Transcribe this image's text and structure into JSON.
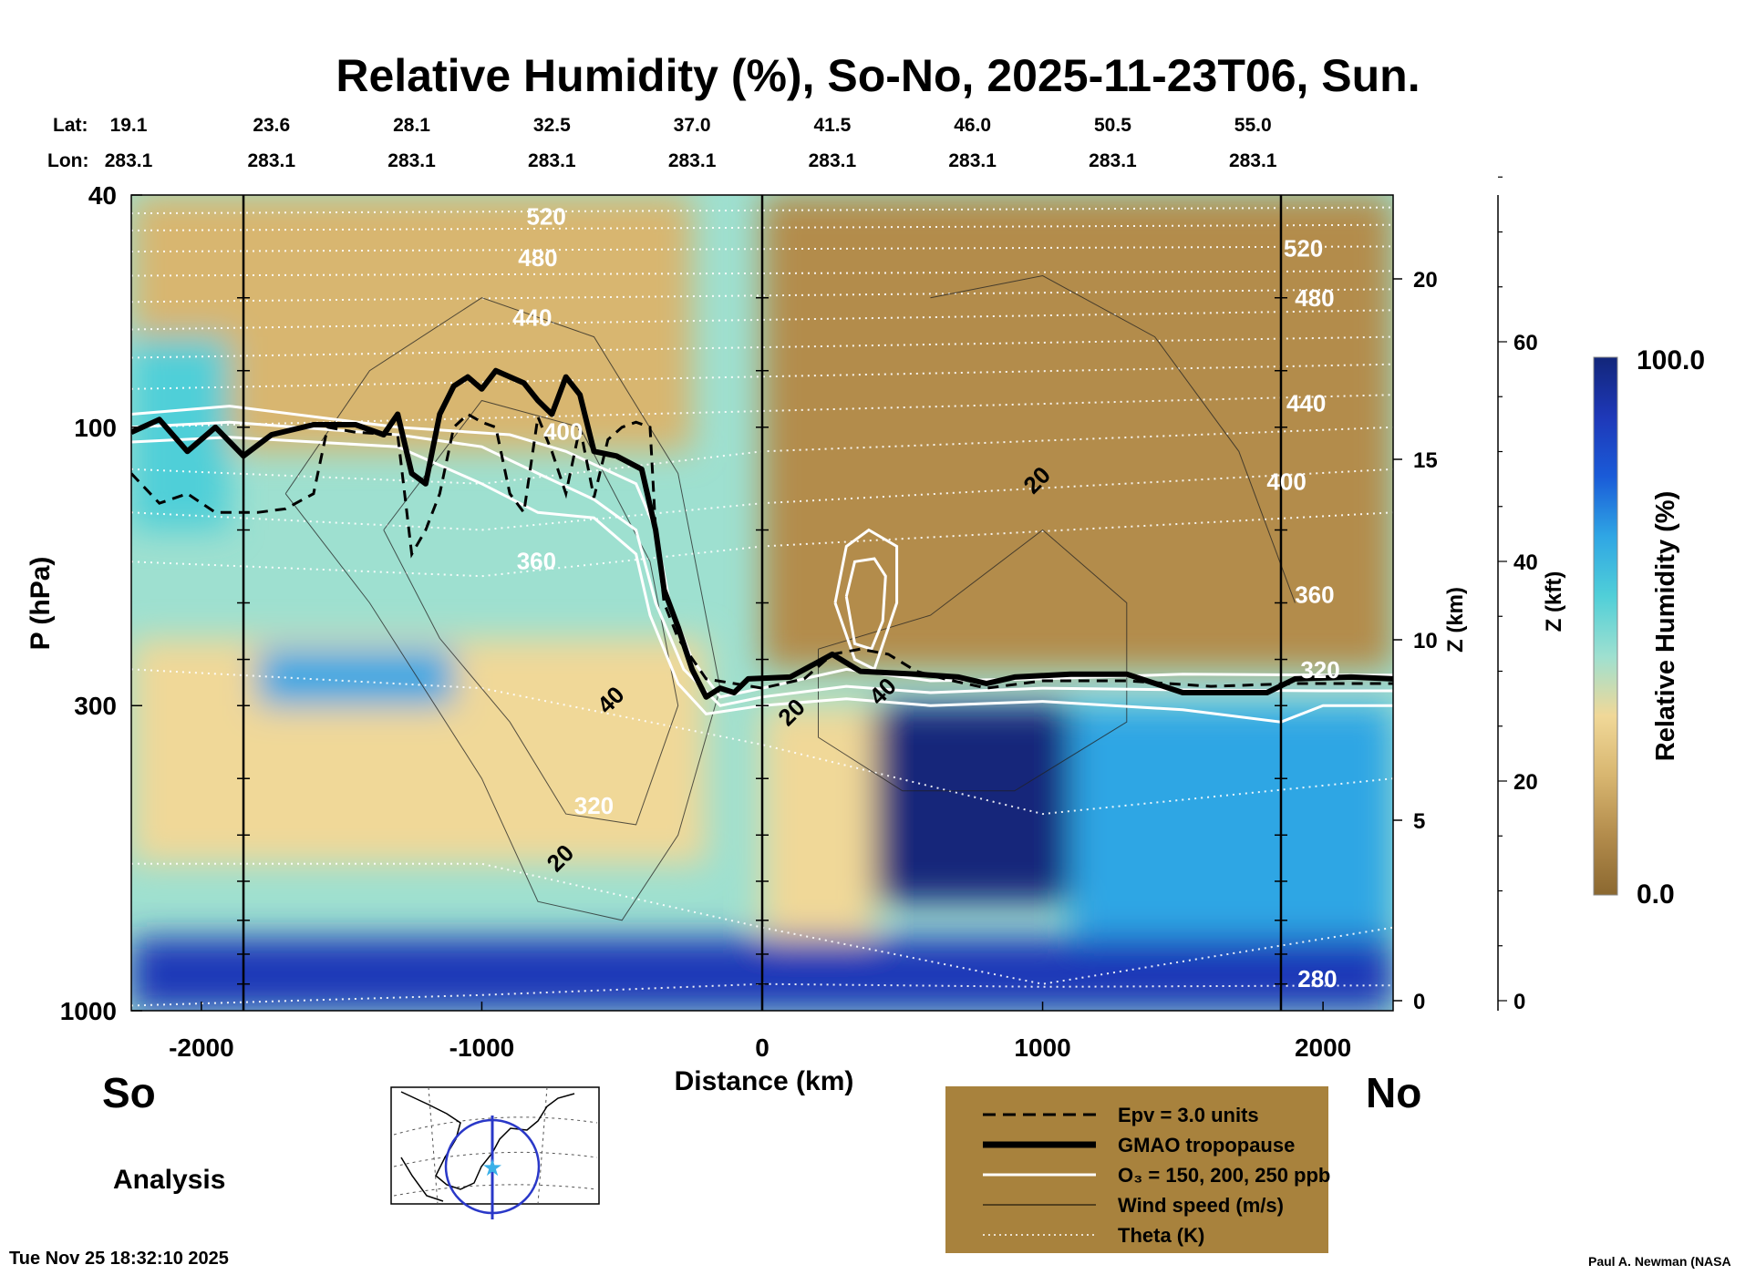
{
  "chart_data": {
    "type": "heatmap",
    "title": "Relative Humidity (%), So-No, 2025-11-23T06, Sun.",
    "variable": "Relative Humidity",
    "xlabel": "Distance (km)",
    "ylabel": "P (hPa)",
    "xlim": [
      -2250,
      2250
    ],
    "ylim": [
      1000,
      40
    ],
    "y_scale": "log",
    "x_ticks": [
      -2000,
      -1000,
      0,
      1000,
      2000
    ],
    "x_tick_labels": [
      "-2000",
      "-1000",
      "0",
      "1000",
      "2000"
    ],
    "y_ticks": [
      40,
      100,
      300,
      1000
    ],
    "y_tick_labels": [
      "40",
      "100",
      "300",
      "1000"
    ],
    "z_km_label": "Z (km)",
    "z_km_ticks": [
      0,
      5,
      10,
      15,
      20
    ],
    "z_km_tick_labels": [
      "0",
      "5",
      "10",
      "15",
      "20"
    ],
    "z_kft_label": "Z (kft)",
    "z_kft_ticks": [
      0,
      20,
      40,
      60
    ],
    "z_kft_tick_labels": [
      "0",
      "20",
      "40",
      "60"
    ],
    "lat_label": "Lat:",
    "lon_label": "Lon:",
    "latlon_stations": [
      {
        "x": -2250,
        "lat": "19.1",
        "lon": "283.1"
      },
      {
        "x": -1750,
        "lat": "23.6",
        "lon": "283.1"
      },
      {
        "x": -1250,
        "lat": "28.1",
        "lon": "283.1"
      },
      {
        "x": -750,
        "lat": "32.5",
        "lon": "283.1"
      },
      {
        "x": -250,
        "lat": "37.0",
        "lon": "283.1"
      },
      {
        "x": 250,
        "lat": "41.5",
        "lon": "283.1"
      },
      {
        "x": 750,
        "lat": "46.0",
        "lon": "283.1"
      },
      {
        "x": 1250,
        "lat": "50.5",
        "lon": "283.1"
      },
      {
        "x": 1750,
        "lat": "55.0",
        "lon": "283.1"
      }
    ],
    "vertical_lines_km": [
      -1850,
      0,
      1850
    ],
    "colorbar": {
      "label": "Relative Humidity (%)",
      "min_label": "0.0",
      "max_label": "100.0",
      "min": 0,
      "max": 100,
      "stops": [
        "#8b6830",
        "#b38c4c",
        "#d8b670",
        "#f0d898",
        "#9ee0d0",
        "#50cfd8",
        "#2fa6e4",
        "#1a5bd8",
        "#1e38b8",
        "#12267a"
      ]
    },
    "rh_regions": [
      {
        "name": "stratosphere-north",
        "x_range": [
          0,
          2250
        ],
        "p_range": [
          40,
          260
        ],
        "rh": 8
      },
      {
        "name": "stratosphere-south",
        "x_range": [
          -2250,
          -250
        ],
        "p_range": [
          40,
          110
        ],
        "rh": 20
      },
      {
        "name": "upper-trop-south-moist",
        "x_range": [
          -2250,
          -1900
        ],
        "p_range": [
          70,
          150
        ],
        "rh": 60
      },
      {
        "name": "mid-trop-south",
        "x_range": [
          -2250,
          -200
        ],
        "p_range": [
          230,
          560
        ],
        "rh": 30
      },
      {
        "name": "trough-moist-band",
        "x_range": [
          -1800,
          -1100
        ],
        "p_range": [
          240,
          300
        ],
        "rh": 65
      },
      {
        "name": "north-trop-dry-tongue",
        "x_range": [
          0,
          400
        ],
        "p_range": [
          300,
          750
        ],
        "rh": 30
      },
      {
        "name": "north-trop-saturated",
        "x_range": [
          400,
          1100
        ],
        "p_range": [
          300,
          650
        ],
        "rh": 95
      },
      {
        "name": "north-trop-moist",
        "x_range": [
          1100,
          2250
        ],
        "p_range": [
          300,
          800
        ],
        "rh": 65
      },
      {
        "name": "boundary-layer",
        "x_range": [
          -2250,
          2250
        ],
        "p_range": [
          750,
          1000
        ],
        "rh": 88
      }
    ],
    "tropopause_hpa": [
      [
        -2250,
        102
      ],
      [
        -2150,
        97
      ],
      [
        -2050,
        110
      ],
      [
        -1950,
        100
      ],
      [
        -1850,
        112
      ],
      [
        -1750,
        103
      ],
      [
        -1600,
        99
      ],
      [
        -1450,
        99
      ],
      [
        -1350,
        103
      ],
      [
        -1300,
        95
      ],
      [
        -1250,
        120
      ],
      [
        -1200,
        125
      ],
      [
        -1150,
        95
      ],
      [
        -1100,
        85
      ],
      [
        -1050,
        82
      ],
      [
        -1000,
        86
      ],
      [
        -950,
        80
      ],
      [
        -850,
        84
      ],
      [
        -800,
        90
      ],
      [
        -750,
        95
      ],
      [
        -700,
        82
      ],
      [
        -650,
        88
      ],
      [
        -600,
        110
      ],
      [
        -520,
        112
      ],
      [
        -430,
        118
      ],
      [
        -380,
        150
      ],
      [
        -350,
        190
      ],
      [
        -300,
        220
      ],
      [
        -250,
        260
      ],
      [
        -200,
        290
      ],
      [
        -150,
        280
      ],
      [
        -100,
        285
      ],
      [
        -50,
        270
      ],
      [
        100,
        268
      ],
      [
        250,
        245
      ],
      [
        350,
        262
      ],
      [
        550,
        265
      ],
      [
        700,
        268
      ],
      [
        800,
        275
      ],
      [
        900,
        268
      ],
      [
        1100,
        265
      ],
      [
        1300,
        265
      ],
      [
        1500,
        285
      ],
      [
        1800,
        285
      ],
      [
        1900,
        270
      ],
      [
        2100,
        268
      ],
      [
        2250,
        270
      ]
    ],
    "epv_3_units_hpa": [
      [
        -2250,
        120
      ],
      [
        -2150,
        135
      ],
      [
        -2050,
        130
      ],
      [
        -1950,
        140
      ],
      [
        -1800,
        140
      ],
      [
        -1700,
        138
      ],
      [
        -1600,
        130
      ],
      [
        -1550,
        100
      ],
      [
        -1450,
        102
      ],
      [
        -1300,
        103
      ],
      [
        -1250,
        165
      ],
      [
        -1200,
        150
      ],
      [
        -1150,
        130
      ],
      [
        -1100,
        100
      ],
      [
        -1050,
        95
      ],
      [
        -1000,
        98
      ],
      [
        -950,
        100
      ],
      [
        -900,
        130
      ],
      [
        -850,
        140
      ],
      [
        -800,
        96
      ],
      [
        -750,
        110
      ],
      [
        -700,
        130
      ],
      [
        -650,
        100
      ],
      [
        -600,
        132
      ],
      [
        -550,
        105
      ],
      [
        -500,
        100
      ],
      [
        -450,
        98
      ],
      [
        -400,
        100
      ],
      [
        -380,
        150
      ],
      [
        -350,
        200
      ],
      [
        -300,
        230
      ],
      [
        -200,
        270
      ],
      [
        -100,
        275
      ],
      [
        0,
        280
      ],
      [
        150,
        270
      ],
      [
        250,
        245
      ],
      [
        350,
        240
      ],
      [
        450,
        245
      ],
      [
        550,
        262
      ],
      [
        650,
        270
      ],
      [
        800,
        280
      ],
      [
        1000,
        272
      ],
      [
        1300,
        272
      ],
      [
        1600,
        278
      ],
      [
        1900,
        275
      ],
      [
        2250,
        275
      ]
    ],
    "ozone_contours_ppb": [
      150,
      200,
      250
    ],
    "ozone_lines_hpa": [
      [
        [
          -2250,
          95
        ],
        [
          -1900,
          92
        ],
        [
          -1300,
          100
        ],
        [
          -900,
          103
        ],
        [
          -700,
          110
        ],
        [
          -450,
          125
        ],
        [
          -380,
          150
        ],
        [
          -330,
          200
        ],
        [
          -250,
          250
        ],
        [
          -150,
          290
        ],
        [
          0,
          280
        ],
        [
          300,
          260
        ],
        [
          600,
          272
        ],
        [
          1000,
          270
        ],
        [
          1500,
          265
        ],
        [
          2000,
          266
        ],
        [
          2250,
          266
        ]
      ],
      [
        [
          -2250,
          100
        ],
        [
          -1900,
          98
        ],
        [
          -1300,
          103
        ],
        [
          -1000,
          108
        ],
        [
          -800,
          120
        ],
        [
          -600,
          133
        ],
        [
          -450,
          150
        ],
        [
          -380,
          200
        ],
        [
          -280,
          260
        ],
        [
          -150,
          300
        ],
        [
          0,
          290
        ],
        [
          300,
          278
        ],
        [
          600,
          285
        ],
        [
          1000,
          280
        ],
        [
          1500,
          282
        ],
        [
          2000,
          283
        ],
        [
          2250,
          283
        ]
      ],
      [
        [
          -2250,
          106
        ],
        [
          -1900,
          104
        ],
        [
          -1300,
          108
        ],
        [
          -1000,
          125
        ],
        [
          -800,
          140
        ],
        [
          -600,
          143
        ],
        [
          -450,
          165
        ],
        [
          -400,
          210
        ],
        [
          -300,
          275
        ],
        [
          -200,
          310
        ],
        [
          0,
          300
        ],
        [
          300,
          292
        ],
        [
          600,
          300
        ],
        [
          1000,
          295
        ],
        [
          1500,
          305
        ],
        [
          1850,
          320
        ],
        [
          2000,
          300
        ],
        [
          2250,
          300
        ]
      ]
    ],
    "wind_speed_contours_ms": [
      20,
      40
    ],
    "wind_labels": [
      {
        "x": 1000,
        "p": 126,
        "text": "20"
      },
      {
        "x": 125,
        "p": 315,
        "text": "20"
      },
      {
        "x": 450,
        "p": 290,
        "text": "40"
      },
      {
        "x": -520,
        "p": 300,
        "text": "40"
      },
      {
        "x": -700,
        "p": 560,
        "text": "20"
      }
    ],
    "theta_levels_k": [
      280,
      320,
      360,
      400,
      440,
      480,
      520
    ],
    "theta_labels": [
      {
        "x": -770,
        "p": 45,
        "text": "520"
      },
      {
        "x": -800,
        "p": 53,
        "text": "480"
      },
      {
        "x": -820,
        "p": 67,
        "text": "440"
      },
      {
        "x": -710,
        "p": 105,
        "text": "400"
      },
      {
        "x": -805,
        "p": 175,
        "text": "360"
      },
      {
        "x": -600,
        "p": 460,
        "text": "320"
      },
      {
        "x": 1930,
        "p": 51,
        "text": "520"
      },
      {
        "x": 1970,
        "p": 62,
        "text": "480"
      },
      {
        "x": 1940,
        "p": 94,
        "text": "440"
      },
      {
        "x": 1870,
        "p": 128,
        "text": "400"
      },
      {
        "x": 1970,
        "p": 200,
        "text": "360"
      },
      {
        "x": 1990,
        "p": 269,
        "text": "320"
      },
      {
        "x": 1980,
        "p": 910,
        "text": "280"
      }
    ],
    "theta_lines_hpa": [
      [
        [
          -2250,
          43
        ],
        [
          2250,
          42
        ]
      ],
      [
        [
          -2250,
          46
        ],
        [
          2250,
          45
        ]
      ],
      [
        [
          -2250,
          50
        ],
        [
          2250,
          49
        ]
      ],
      [
        [
          -2250,
          55
        ],
        [
          2250,
          54
        ]
      ],
      [
        [
          -2250,
          61
        ],
        [
          2250,
          58
        ]
      ],
      [
        [
          -2250,
          68
        ],
        [
          2250,
          63
        ]
      ],
      [
        [
          -2250,
          76
        ],
        [
          2250,
          70
        ]
      ],
      [
        [
          -2250,
          86
        ],
        [
          2250,
          78
        ]
      ],
      [
        [
          -2250,
          100
        ],
        [
          2250,
          88
        ]
      ],
      [
        [
          -2250,
          118
        ],
        [
          -1000,
          125
        ],
        [
          0,
          110
        ],
        [
          2250,
          100
        ]
      ],
      [
        [
          -2250,
          140
        ],
        [
          -1000,
          150
        ],
        [
          0,
          135
        ],
        [
          2250,
          118
        ]
      ],
      [
        [
          -2250,
          170
        ],
        [
          -1000,
          180
        ],
        [
          0,
          160
        ],
        [
          2250,
          140
        ]
      ],
      [
        [
          -2250,
          260
        ],
        [
          -1000,
          280
        ],
        [
          0,
          350
        ],
        [
          1000,
          460
        ],
        [
          2250,
          400
        ]
      ],
      [
        [
          -2250,
          560
        ],
        [
          -1000,
          560
        ],
        [
          0,
          720
        ],
        [
          1000,
          900
        ],
        [
          2250,
          720
        ]
      ],
      [
        [
          -2250,
          980
        ],
        [
          -1000,
          940
        ],
        [
          0,
          900
        ],
        [
          1000,
          910
        ],
        [
          2250,
          905
        ]
      ]
    ],
    "legend": [
      {
        "style": "dashed",
        "text": "Epv = 3.0 units"
      },
      {
        "style": "thick",
        "text": "GMAO tropopause"
      },
      {
        "style": "white",
        "text": "O₃ = 150, 200, 250 ppb"
      },
      {
        "style": "thin",
        "text": "Wind speed (m/s)"
      },
      {
        "style": "dotted",
        "text": "Theta (K)"
      }
    ]
  },
  "labels": {
    "south": "So",
    "north": "No",
    "analysis": "Analysis",
    "timestamp": "Tue Nov 25 18:32:10 2025",
    "credit": "Paul A. Newman (NASA"
  }
}
